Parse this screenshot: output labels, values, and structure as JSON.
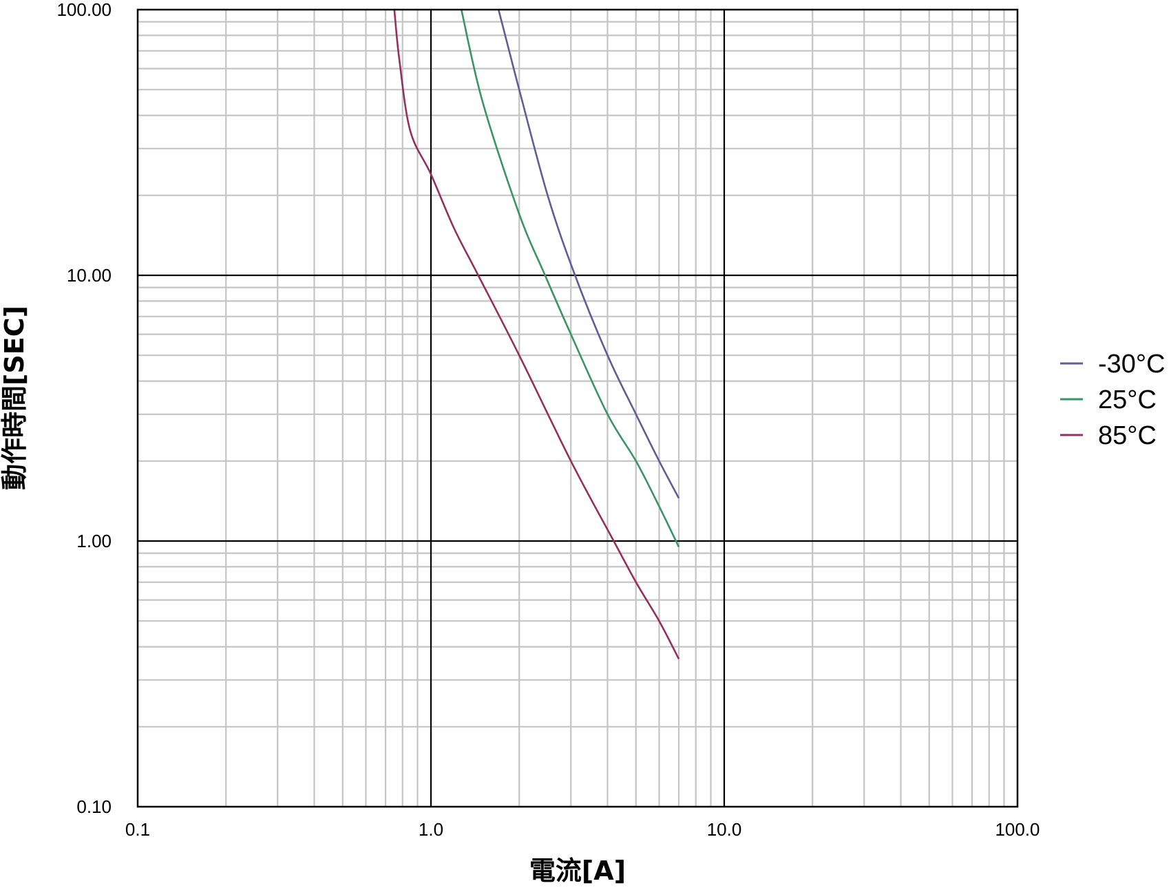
{
  "chart_data": {
    "type": "line",
    "title": "",
    "xlabel": "電流[A]",
    "ylabel": "動作時間[SEC]",
    "xscale": "log",
    "yscale": "log",
    "xlim": [
      0.1,
      100
    ],
    "ylim": [
      0.1,
      100
    ],
    "grid": true,
    "legend_position": "right",
    "x_tick_labels": [
      "0.1",
      "1.0",
      "10.0",
      "100.0"
    ],
    "y_tick_labels": [
      "0.10",
      "1.00",
      "10.00",
      "100.00"
    ],
    "series": [
      {
        "name": "-30°C",
        "color": "#5e5e96",
        "x": [
          1.7,
          2.0,
          2.5,
          3.1,
          4.0,
          5.0,
          6.0,
          7.0
        ],
        "y": [
          100,
          50,
          20,
          10,
          5.0,
          3.0,
          2.0,
          1.45
        ]
      },
      {
        "name": "25°C",
        "color": "#3a9463",
        "x": [
          1.27,
          1.5,
          2.0,
          2.45,
          3.0,
          4.0,
          5.0,
          6.0,
          7.0
        ],
        "y": [
          100,
          45,
          17,
          10,
          6.0,
          3.0,
          2.0,
          1.35,
          0.95
        ]
      },
      {
        "name": "85°C",
        "color": "#93305e",
        "x": [
          0.75,
          0.78,
          0.85,
          1.0,
          1.2,
          1.45,
          2.0,
          3.0,
          4.2,
          5.0,
          6.0,
          7.0
        ],
        "y": [
          100,
          65,
          35,
          24,
          15,
          10,
          5.0,
          2.0,
          1.0,
          0.7,
          0.5,
          0.36
        ]
      }
    ]
  }
}
